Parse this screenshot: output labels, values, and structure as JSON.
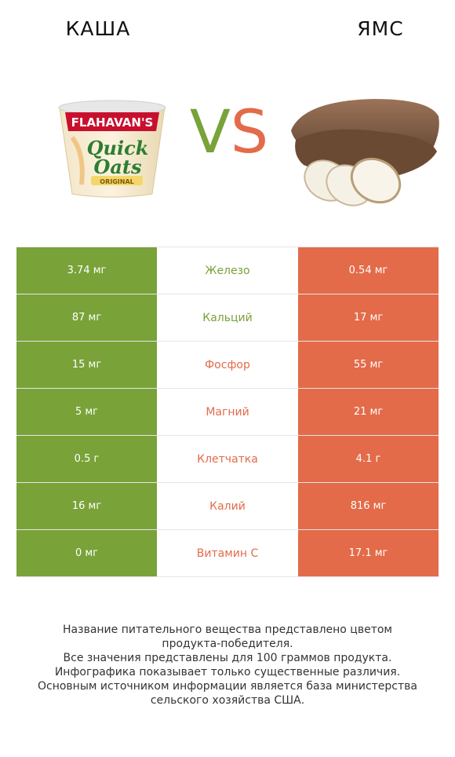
{
  "header": {
    "left_title": "КАША",
    "right_title": "ЯМС",
    "vs_left": "V",
    "vs_right": "S"
  },
  "colors": {
    "winner_left": "#79a239",
    "winner_right": "#e36b49"
  },
  "product_left": {
    "icon": "quick-oats-cup-image",
    "brand": "FLAHAVAN'S",
    "line1": "Quick",
    "line2": "Oats",
    "badge": "ORIGINAL"
  },
  "product_right": {
    "icon": "yam-tuber-image"
  },
  "rows": [
    {
      "left": "3.74 мг",
      "nutrient": "Железо",
      "right": "0.54 мг",
      "winner": "left"
    },
    {
      "left": "87 мг",
      "nutrient": "Кальций",
      "right": "17 мг",
      "winner": "left"
    },
    {
      "left": "15 мг",
      "nutrient": "Фосфор",
      "right": "55 мг",
      "winner": "right"
    },
    {
      "left": "5 мг",
      "nutrient": "Магний",
      "right": "21 мг",
      "winner": "right"
    },
    {
      "left": "0.5 г",
      "nutrient": "Клетчатка",
      "right": "4.1 г",
      "winner": "right"
    },
    {
      "left": "16 мг",
      "nutrient": "Калий",
      "right": "816 мг",
      "winner": "right"
    },
    {
      "left": "0 мг",
      "nutrient": "Витамин C",
      "right": "17.1 мг",
      "winner": "right"
    }
  ],
  "footer": {
    "line1": "Название питательного вещества представлено цветом",
    "line2": "продукта-победителя.",
    "line3": "Все значения представлены для 100 граммов продукта.",
    "line4": "Инфографика показывает только существенные различия.",
    "line5": "Основным источником информации является база министерства",
    "line6": "сельского хозяйства США."
  }
}
